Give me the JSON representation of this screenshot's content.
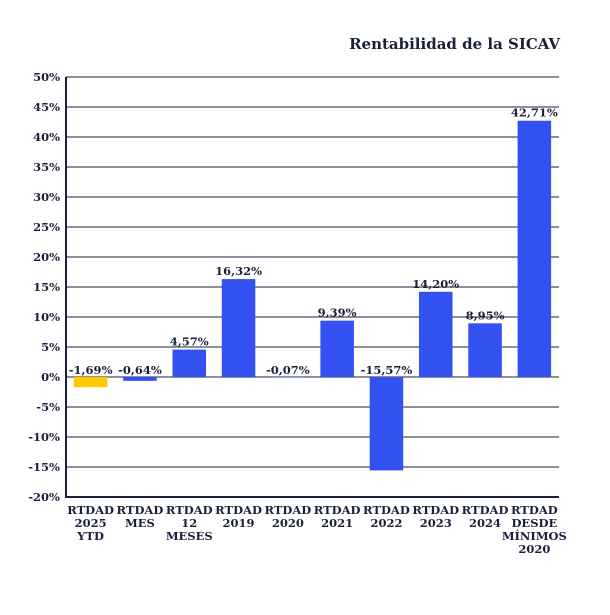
{
  "chart_data": {
    "type": "bar",
    "title": "Rentabilidad de la SICAV",
    "xlabel": "",
    "ylabel": "",
    "ylim": [
      -20,
      50
    ],
    "ytick_step": 5,
    "yticks": [
      "50%",
      "45%",
      "40%",
      "35%",
      "30%",
      "25%",
      "20%",
      "15%",
      "10%",
      "5%",
      "0%",
      "-5%",
      "-10%",
      "-15%",
      "-20%"
    ],
    "grid": true,
    "categories": [
      [
        "RTDAD",
        "2025",
        "YTD"
      ],
      [
        "RTDAD",
        "MES"
      ],
      [
        "RTDAD",
        "12",
        "MESES"
      ],
      [
        "RTDAD",
        "2019"
      ],
      [
        "RTDAD",
        "2020"
      ],
      [
        "RTDAD",
        "2021"
      ],
      [
        "RTDAD",
        "2022"
      ],
      [
        "RTDAD",
        "2023"
      ],
      [
        "RTDAD",
        "2024"
      ],
      [
        "RTDAD",
        "DESDE",
        "MÍNIMOS",
        "2020"
      ]
    ],
    "values": [
      -1.69,
      -0.64,
      4.57,
      16.32,
      -0.07,
      9.39,
      -15.57,
      14.2,
      8.95,
      42.71
    ],
    "data_labels": [
      "-1,69%",
      "-0,64%",
      "4,57%",
      "16,32%",
      "-0,07%",
      "9,39%",
      "-15,57%",
      "14,20%",
      "8,95%",
      "42,71%"
    ],
    "colors": [
      "#FFC800",
      "#3350F0",
      "#3350F0",
      "#3350F0",
      "#3350F0",
      "#3350F0",
      "#3350F0",
      "#3350F0",
      "#3350F0",
      "#3350F0"
    ]
  }
}
